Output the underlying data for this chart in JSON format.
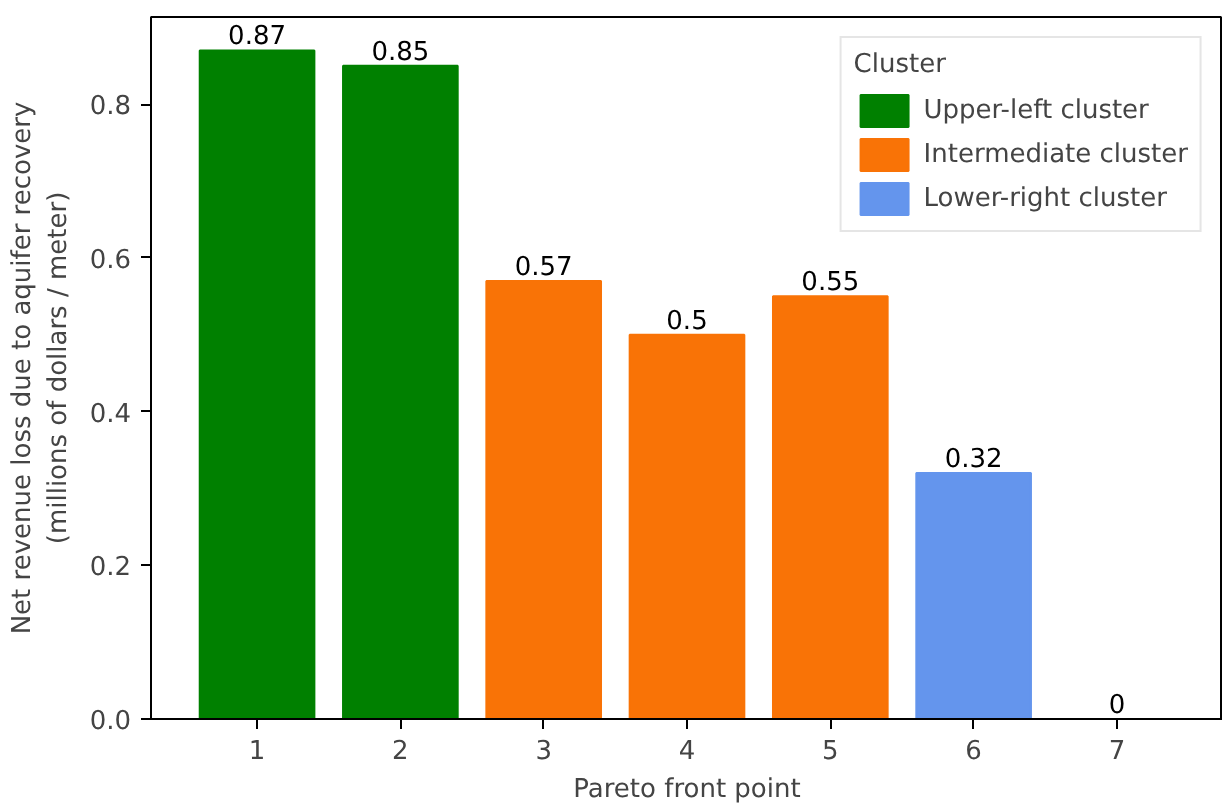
{
  "chart_data": {
    "type": "bar",
    "xlabel": "Pareto front point",
    "ylabel": "Net revenue loss due to aquifer recovery\n(millions of dollars / meter)",
    "legend_title": "Cluster",
    "categories": [
      "1",
      "2",
      "3",
      "4",
      "5",
      "6",
      "7"
    ],
    "series": [
      {
        "name": "Upper-left cluster",
        "color": "#008000",
        "values": [
          0.87,
          0.85,
          null,
          null,
          null,
          null,
          null
        ]
      },
      {
        "name": "Intermediate cluster",
        "color": "#f97306",
        "values": [
          null,
          null,
          0.57,
          0.5,
          0.55,
          null,
          null
        ]
      },
      {
        "name": "Lower-right cluster",
        "color": "#6495ed",
        "values": [
          null,
          null,
          null,
          null,
          null,
          0.32,
          0
        ]
      }
    ],
    "ylim": [
      0,
      0.9135
    ],
    "yticks": [
      {
        "value": 0,
        "label": "0.0"
      },
      {
        "value": 0.2,
        "label": "0.2"
      },
      {
        "value": 0.4,
        "label": "0.4"
      },
      {
        "value": 0.6,
        "label": "0.6"
      },
      {
        "value": 0.8,
        "label": "0.8"
      }
    ],
    "data_labels": true,
    "legend": "top right",
    "grid": false
  }
}
